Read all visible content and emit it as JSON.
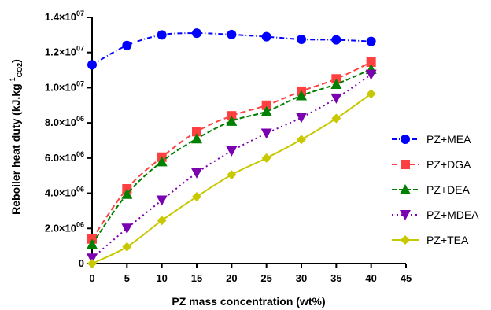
{
  "chart_data": {
    "type": "line",
    "xlabel": "PZ mass concentration (wt%)",
    "ylabel": {
      "main": "Reboiler heat duty (kJ.kg",
      "sup": "-1",
      "sub": "CO2",
      "close": ")"
    },
    "xlim": [
      0,
      45
    ],
    "ylim": [
      0,
      14000000
    ],
    "x_ticks": [
      0,
      5,
      10,
      15,
      20,
      25,
      30,
      35,
      40,
      45
    ],
    "x_tick_labels": [
      "0",
      "5",
      "10",
      "15",
      "20",
      "25",
      "30",
      "35",
      "40",
      "45"
    ],
    "y_ticks": [
      {
        "value": 0,
        "mantissa": "0",
        "exp": ""
      },
      {
        "value": 2000000,
        "mantissa": "2.0×10",
        "exp": "06"
      },
      {
        "value": 4000000,
        "mantissa": "4.0×10",
        "exp": "06"
      },
      {
        "value": 6000000,
        "mantissa": "6.0×10",
        "exp": "06"
      },
      {
        "value": 8000000,
        "mantissa": "8.0×10",
        "exp": "06"
      },
      {
        "value": 10000000,
        "mantissa": "1.0×10",
        "exp": "07"
      },
      {
        "value": 12000000,
        "mantissa": "1.2×10",
        "exp": "07"
      },
      {
        "value": 14000000,
        "mantissa": "1.4×10",
        "exp": "07"
      }
    ],
    "grid": false,
    "legend_position": "right",
    "x": [
      0,
      5,
      10,
      15,
      20,
      25,
      30,
      35,
      40
    ],
    "series": [
      {
        "name": "PZ+MEA",
        "color": "#0000ff",
        "marker": "circle",
        "dash": "6,3,1,3",
        "values": [
          11300000,
          12400000,
          13000000,
          13100000,
          13020000,
          12900000,
          12750000,
          12720000,
          12630000
        ]
      },
      {
        "name": "PZ+DGA",
        "color": "#ff4040",
        "marker": "square",
        "dash": "7,4",
        "values": [
          1400000,
          4250000,
          6050000,
          7500000,
          8400000,
          9000000,
          9800000,
          10500000,
          11450000
        ]
      },
      {
        "name": "PZ+DEA",
        "color": "#008000",
        "marker": "triangle-up",
        "dash": "6,3",
        "values": [
          1100000,
          3950000,
          5800000,
          7100000,
          8100000,
          8650000,
          9550000,
          10200000,
          11050000
        ]
      },
      {
        "name": "PZ+MDEA",
        "color": "#7a00b0",
        "marker": "triangle-down",
        "dash": "2,4",
        "values": [
          300000,
          2000000,
          3600000,
          5150000,
          6400000,
          7400000,
          8300000,
          9400000,
          10750000
        ]
      },
      {
        "name": "PZ+TEA",
        "color": "#c8c800",
        "marker": "diamond",
        "dash": "",
        "values": [
          0,
          950000,
          2450000,
          3800000,
          5050000,
          6000000,
          7050000,
          8250000,
          9650000
        ]
      }
    ]
  }
}
